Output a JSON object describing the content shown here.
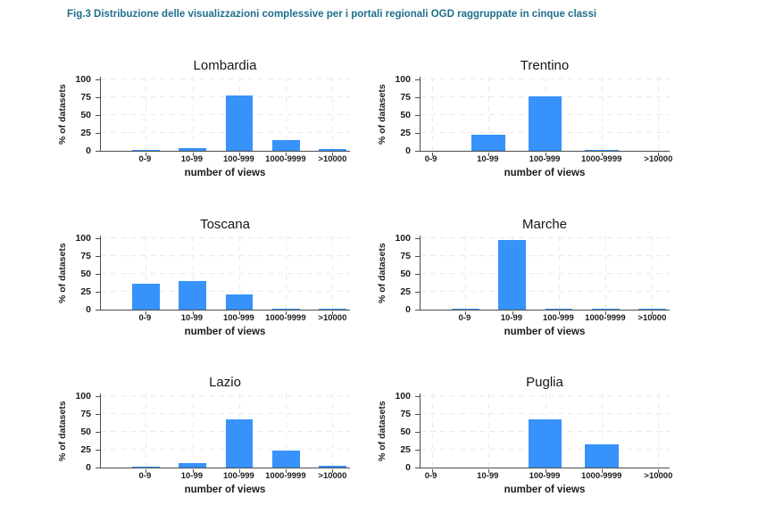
{
  "figure": {
    "caption": "Fig.3 Distribuzione delle visualizzazioni complessive per i portali regionali OGD raggruppate in cinque classi",
    "caption_color": "#1f6e8c"
  },
  "chart_data": {
    "type": "bar",
    "categories": [
      "0-9",
      "10-99",
      "100-999",
      "1000-9999",
      ">10000"
    ],
    "xlabel": "number of views",
    "ylabel": "% of datasets",
    "yticks": [
      0,
      25,
      50,
      75,
      100
    ],
    "ylim": [
      0,
      105
    ],
    "grid": true,
    "grid_style": "dashed light gray, both directions",
    "bar_color": "#3792fb",
    "layout": "2 columns x 3 rows of small multiples",
    "charts": [
      {
        "title": "Lombardia",
        "values": [
          0.5,
          4,
          78,
          15,
          2
        ]
      },
      {
        "title": "Trentino",
        "values": [
          0,
          23,
          76,
          0.5,
          0
        ]
      },
      {
        "title": "Toscana",
        "values": [
          36,
          40,
          21,
          1,
          1
        ]
      },
      {
        "title": "Marche",
        "values": [
          0.5,
          98,
          1.5,
          0.5,
          0.5
        ]
      },
      {
        "title": "Lazio",
        "values": [
          1,
          6,
          68,
          24,
          2
        ]
      },
      {
        "title": "Puglia",
        "values": [
          0,
          0,
          67,
          33,
          0
        ]
      }
    ]
  }
}
